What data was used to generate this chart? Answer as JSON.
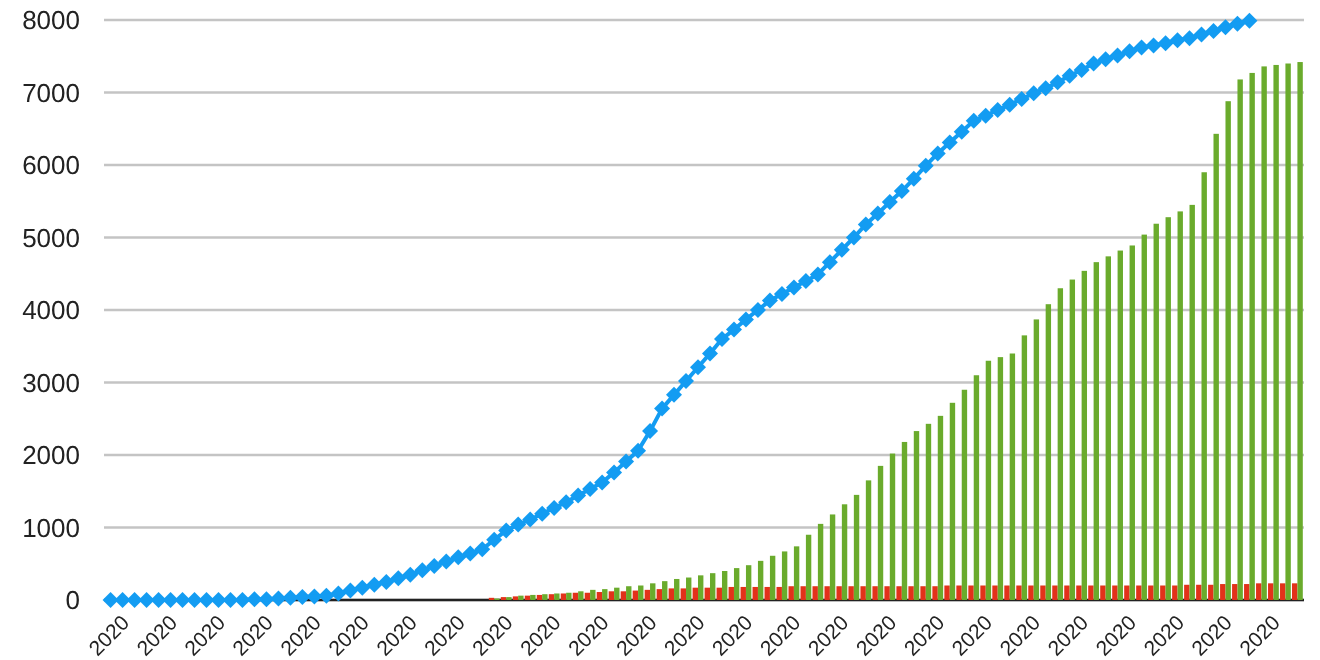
{
  "chart_data": {
    "type": "bar",
    "categories": [
      "2020",
      null,
      null,
      null,
      "2020",
      null,
      null,
      null,
      "2020",
      null,
      null,
      null,
      "2020",
      null,
      null,
      null,
      "2020",
      null,
      null,
      null,
      "2020",
      null,
      null,
      null,
      "2020",
      null,
      null,
      null,
      "2020",
      null,
      null,
      null,
      "2020",
      null,
      null,
      null,
      "2020",
      null,
      null,
      null,
      "2020",
      null,
      null,
      null,
      "2020",
      null,
      null,
      null,
      "2020",
      null,
      null,
      null,
      "2020",
      null,
      null,
      null,
      "2020",
      null,
      null,
      null,
      "2020",
      null,
      null,
      null,
      "2020",
      null,
      null,
      null,
      "2020",
      null,
      null,
      null,
      "2020",
      null,
      null,
      null,
      "2020",
      null,
      null,
      null,
      "2020",
      null,
      null,
      null,
      "2020",
      null,
      null,
      null,
      "2020",
      null,
      null,
      null,
      "2020",
      null,
      null,
      null,
      "2020",
      null,
      null,
      null
    ],
    "ylim": [
      0,
      8000
    ],
    "yticks": [
      0,
      1000,
      2000,
      3000,
      4000,
      5000,
      6000,
      7000,
      8000
    ],
    "grid": "y",
    "marker": "diamond",
    "series": [
      {
        "color": "#e2321a",
        "values": [
          null,
          null,
          null,
          null,
          null,
          null,
          null,
          null,
          null,
          null,
          null,
          null,
          null,
          null,
          null,
          null,
          null,
          null,
          null,
          null,
          null,
          null,
          null,
          null,
          null,
          null,
          null,
          null,
          null,
          null,
          null,
          null,
          30,
          40,
          50,
          60,
          70,
          80,
          90,
          100,
          100,
          110,
          120,
          120,
          130,
          140,
          150,
          160,
          160,
          170,
          170,
          170,
          180,
          180,
          180,
          180,
          180,
          190,
          190,
          190,
          190,
          190,
          190,
          190,
          190,
          190,
          190,
          190,
          190,
          190,
          200,
          200,
          200,
          200,
          200,
          200,
          200,
          200,
          200,
          200,
          200,
          200,
          200,
          200,
          200,
          200,
          200,
          200,
          200,
          200,
          210,
          210,
          210,
          220,
          220,
          220,
          230,
          230,
          230,
          230
        ]
      },
      {
        "color": "#6aab2c",
        "values": [
          null,
          null,
          null,
          null,
          null,
          null,
          null,
          null,
          null,
          null,
          null,
          null,
          null,
          null,
          null,
          null,
          null,
          null,
          null,
          null,
          null,
          null,
          null,
          null,
          null,
          null,
          null,
          null,
          null,
          null,
          null,
          null,
          20,
          40,
          60,
          70,
          80,
          90,
          100,
          120,
          140,
          150,
          170,
          190,
          200,
          230,
          260,
          290,
          310,
          340,
          370,
          400,
          440,
          480,
          540,
          610,
          670,
          740,
          900,
          1050,
          1180,
          1320,
          1450,
          1650,
          1850,
          2020,
          2180,
          2330,
          2430,
          2540,
          2720,
          2900,
          3100,
          3300,
          3350,
          3400,
          3650,
          3870,
          4080,
          4300,
          4420,
          4540,
          4660,
          4740,
          4820,
          4890,
          5040,
          5190,
          5280,
          5360,
          5450,
          5900,
          6430,
          6880,
          7180,
          7270,
          7360,
          7380,
          7400,
          7420
        ]
      },
      {
        "type": "line",
        "color": "#139cf2",
        "values": [
          0,
          0,
          0,
          0,
          0,
          0,
          0,
          0,
          0,
          0,
          0,
          0,
          10,
          10,
          20,
          30,
          40,
          50,
          60,
          90,
          130,
          170,
          210,
          250,
          300,
          350,
          410,
          470,
          530,
          590,
          640,
          700,
          830,
          960,
          1040,
          1110,
          1190,
          1270,
          1350,
          1440,
          1530,
          1620,
          1760,
          1910,
          2060,
          2330,
          2640,
          2830,
          3020,
          3210,
          3400,
          3600,
          3730,
          3870,
          4000,
          4130,
          4220,
          4310,
          4400,
          4490,
          4660,
          4830,
          5000,
          5180,
          5330,
          5490,
          5640,
          5810,
          5990,
          6160,
          6310,
          6460,
          6610,
          6680,
          6760,
          6830,
          6910,
          6990,
          7060,
          7140,
          7230,
          7310,
          7400,
          7460,
          7510,
          7570,
          7620,
          7650,
          7680,
          7720,
          7750,
          7800,
          7850,
          7900,
          7950,
          7990,
          null,
          null,
          null,
          null
        ]
      }
    ]
  }
}
